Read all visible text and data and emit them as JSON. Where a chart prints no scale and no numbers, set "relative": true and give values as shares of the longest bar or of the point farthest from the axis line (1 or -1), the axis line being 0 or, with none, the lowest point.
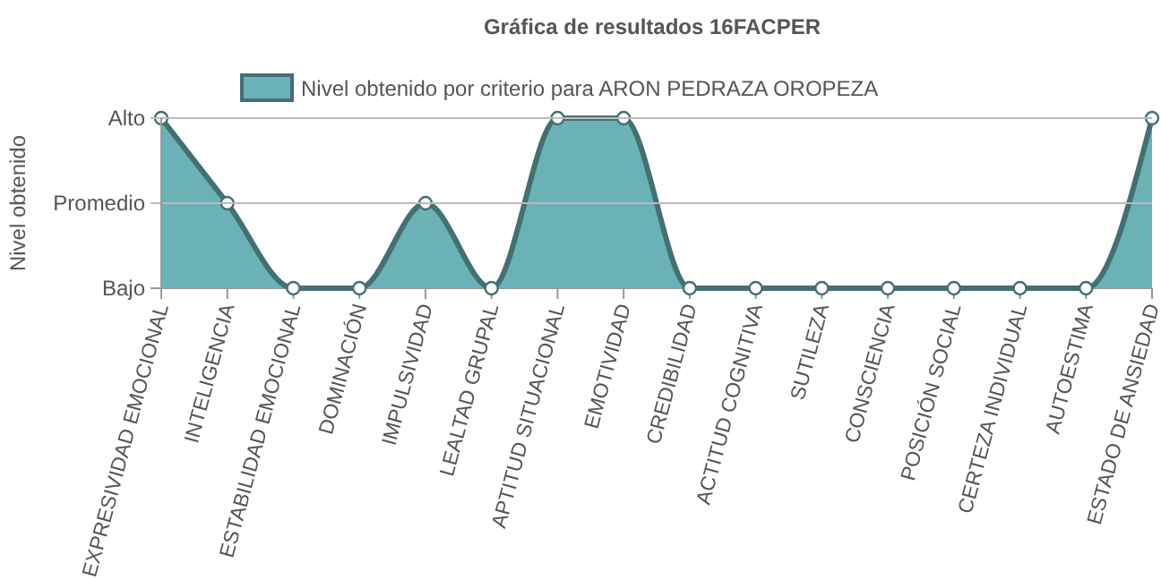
{
  "chart_data": {
    "type": "area",
    "title": "Gráfica de resultados 16FACPER",
    "ylabel": "Nivel obtenido",
    "relative": true,
    "categories": [
      "EXPRESIVIDAD EMOCIONAL",
      "INTELIGENCIA",
      "ESTABILIDAD EMOCIONAL",
      "DOMINACIÓN",
      "IMPULSIVIDAD",
      "LEALTAD GRUPAL",
      "APTITUD SITUACIONAL",
      "EMOTIVIDAD",
      "CREDIBILIDAD",
      "ACTITUD COGNITIVA",
      "SUTILEZA",
      "CONSCIENCIA",
      "POSICIÓN SOCIAL",
      "CERTEZA INDIVIDUAL",
      "AUTOESTIMA",
      "ESTADO DE ANSIEDAD"
    ],
    "series": [
      {
        "name": "Nivel obtenido por criterio para ARON PEDRAZA OROPEZA",
        "color": "#6ab2b6",
        "values": [
          1,
          0.5,
          0,
          0,
          0.5,
          0,
          1,
          1,
          0,
          0,
          0,
          0,
          0,
          0,
          0,
          1
        ]
      }
    ],
    "annotations": [
      "Bajo"
    ],
    "ref_lines": [
      {
        "axis": "y",
        "value": 0.5,
        "label": "Promedio",
        "color": "#bbbbbb"
      },
      {
        "axis": "y",
        "value": 1,
        "label": "Alto",
        "color": "#bbbbbb"
      }
    ],
    "legend": "top",
    "marker": "circle",
    "line_style": "solid"
  }
}
